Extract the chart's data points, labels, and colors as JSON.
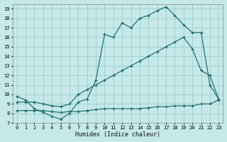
{
  "xlabel": "Humidex (Indice chaleur)",
  "xlim": [
    -0.5,
    23.5
  ],
  "ylim": [
    7,
    19.5
  ],
  "xticks": [
    0,
    1,
    2,
    3,
    4,
    5,
    6,
    7,
    8,
    9,
    10,
    11,
    12,
    13,
    14,
    15,
    16,
    17,
    18,
    19,
    20,
    21,
    22,
    23
  ],
  "yticks": [
    7,
    8,
    9,
    10,
    11,
    12,
    13,
    14,
    15,
    16,
    17,
    18,
    19
  ],
  "bg_color": "#c5e8e8",
  "grid_color": "#9ecece",
  "line_color": "#1a6b6b",
  "line1_x": [
    0,
    1,
    2,
    3,
    4,
    5,
    6,
    7,
    8,
    9,
    10,
    11,
    12,
    13,
    14,
    15,
    16,
    17,
    18,
    19,
    20,
    21,
    22,
    23
  ],
  "line1_y": [
    9.8,
    9.4,
    8.5,
    8.1,
    7.7,
    7.4,
    8.0,
    9.2,
    9.5,
    11.5,
    16.3,
    16.0,
    17.5,
    17.0,
    18.0,
    18.3,
    18.8,
    19.2,
    18.3,
    17.3,
    16.5,
    16.5,
    11.0,
    9.5
  ],
  "line2_x": [
    0,
    1,
    2,
    3,
    4,
    5,
    6,
    7,
    8,
    9,
    10,
    11,
    12,
    13,
    14,
    15,
    16,
    17,
    18,
    19,
    20,
    21,
    22,
    23
  ],
  "line2_y": [
    8.3,
    8.3,
    8.3,
    8.3,
    8.2,
    8.1,
    8.2,
    8.2,
    8.3,
    8.4,
    8.5,
    8.5,
    8.5,
    8.5,
    8.5,
    8.6,
    8.7,
    8.7,
    8.8,
    8.8,
    8.8,
    9.0,
    9.0,
    9.4
  ],
  "line3_x": [
    0,
    1,
    2,
    3,
    4,
    5,
    6,
    7,
    8,
    9,
    10,
    11,
    12,
    13,
    14,
    15,
    16,
    17,
    18,
    19,
    20,
    21,
    22,
    23
  ],
  "line3_y": [
    9.2,
    9.2,
    9.2,
    9.0,
    8.8,
    8.7,
    9.0,
    10.0,
    10.5,
    11.0,
    11.5,
    12.0,
    12.5,
    13.0,
    13.5,
    14.0,
    14.5,
    15.0,
    15.5,
    16.0,
    14.8,
    12.5,
    12.0,
    9.5
  ]
}
